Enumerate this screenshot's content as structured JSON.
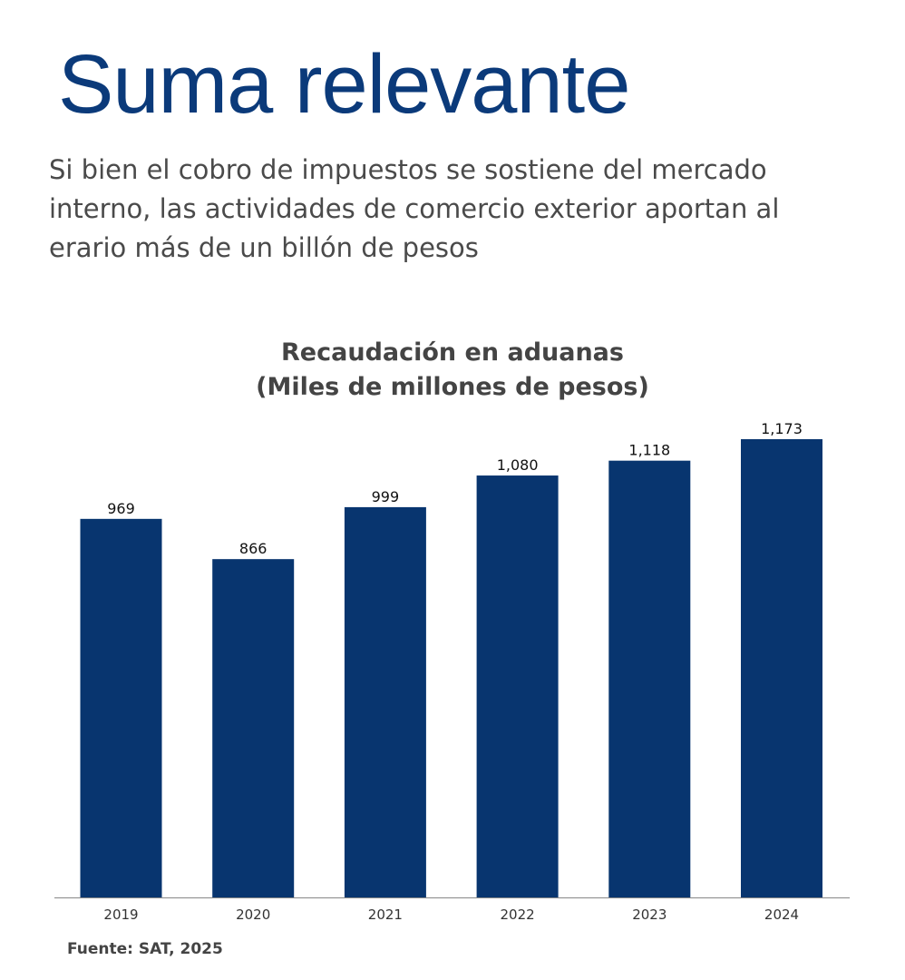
{
  "header": {
    "title": "Suma relevante",
    "subtitle": "Si bien el cobro de impuestos se sostiene del mercado interno, las actividades de comercio exterior aportan al erario más de un billón de pesos"
  },
  "chart_data": {
    "type": "bar",
    "title_line1": "Recaudación en aduanas",
    "title_line2": "(Miles de millones de pesos)",
    "categories": [
      "2019",
      "2020",
      "2021",
      "2022",
      "2023",
      "2024"
    ],
    "values": [
      969,
      866,
      999,
      1080,
      1118,
      1173
    ],
    "value_labels": [
      "969",
      "866",
      "999",
      "1,080",
      "1,118",
      "1,173"
    ],
    "ylim": [
      0,
      1173
    ],
    "grid": false,
    "legend": "none",
    "bar_color": "#08356f"
  },
  "footer": {
    "source": "Fuente: SAT, 2025"
  },
  "colors": {
    "headline": "#0b3a7a",
    "text": "#4a4a4a",
    "axis": "#888888"
  }
}
